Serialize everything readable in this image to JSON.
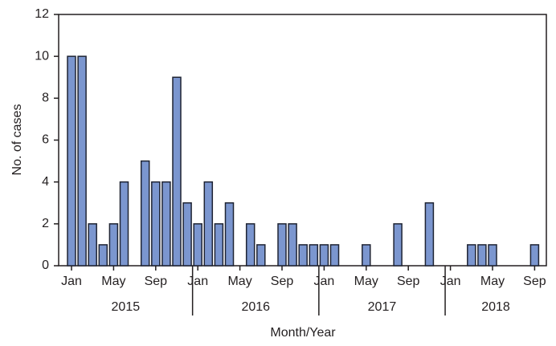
{
  "chart_data": {
    "type": "bar",
    "x_label": "Month/Year",
    "y_label": "No. of cases",
    "categories": [
      "Jan",
      null,
      null,
      null,
      "May",
      null,
      null,
      null,
      "Sep",
      null,
      null,
      null,
      "Jan",
      null,
      null,
      null,
      "May",
      null,
      null,
      null,
      "Sep",
      null,
      null,
      null,
      "Jan",
      null,
      null,
      null,
      "May",
      null,
      null,
      null,
      "Sep",
      null,
      null,
      null,
      "Jan",
      null,
      null,
      null,
      "May",
      null,
      null,
      null,
      "Sep"
    ],
    "years": [
      "2015",
      "2016",
      "2017",
      "2018"
    ],
    "values": [
      10,
      10,
      2,
      1,
      2,
      4,
      0,
      5,
      4,
      4,
      9,
      3,
      2,
      4,
      2,
      3,
      0,
      2,
      1,
      0,
      2,
      2,
      1,
      1,
      1,
      1,
      0,
      0,
      1,
      0,
      0,
      2,
      0,
      0,
      3,
      0,
      0,
      0,
      1,
      1,
      1,
      0,
      0,
      0,
      1
    ],
    "color": "#7b96cf",
    "ylim": [
      0,
      12
    ],
    "yticks": [
      0,
      2,
      4,
      6,
      8,
      10,
      12
    ]
  }
}
